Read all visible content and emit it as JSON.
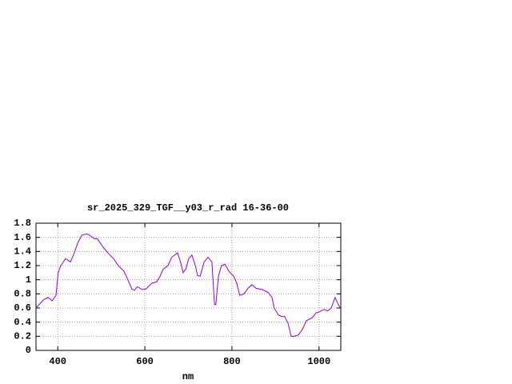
{
  "chart_data": {
    "type": "line",
    "title": "sr_2025_329_TGF__y03_r_rad 16-36-00",
    "x_label": "nm",
    "x": [
      350,
      368,
      378,
      387,
      396,
      401,
      407,
      418,
      429,
      436,
      446,
      455,
      466,
      473,
      484,
      491,
      502,
      515,
      528,
      539,
      552,
      561,
      570,
      576,
      583,
      594,
      603,
      616,
      627,
      635,
      642,
      653,
      662,
      675,
      682,
      688,
      694,
      701,
      708,
      716,
      721,
      727,
      736,
      745,
      754,
      760,
      763,
      769,
      776,
      784,
      793,
      804,
      811,
      818,
      828,
      837,
      846,
      855,
      870,
      883,
      892,
      897,
      907,
      914,
      921,
      929,
      936,
      943,
      953,
      962,
      971,
      984,
      993,
      1002,
      1011,
      1020,
      1028,
      1037,
      1042,
      1050
    ],
    "series": [
      {
        "name": "sr_2025_329_TGF__y03_r_rad",
        "color": "#9400d3",
        "values": [
          0.6,
          0.72,
          0.75,
          0.7,
          0.78,
          1.1,
          1.2,
          1.3,
          1.25,
          1.35,
          1.52,
          1.63,
          1.65,
          1.63,
          1.58,
          1.58,
          1.48,
          1.38,
          1.3,
          1.2,
          1.12,
          1.0,
          0.87,
          0.85,
          0.9,
          0.86,
          0.87,
          0.95,
          0.97,
          1.05,
          1.15,
          1.2,
          1.32,
          1.38,
          1.25,
          1.1,
          1.15,
          1.3,
          1.35,
          1.2,
          1.06,
          1.05,
          1.25,
          1.32,
          1.25,
          0.65,
          0.65,
          1.05,
          1.2,
          1.22,
          1.12,
          1.05,
          0.95,
          0.78,
          0.8,
          0.88,
          0.93,
          0.88,
          0.86,
          0.82,
          0.75,
          0.6,
          0.5,
          0.48,
          0.48,
          0.38,
          0.2,
          0.2,
          0.22,
          0.3,
          0.42,
          0.46,
          0.53,
          0.55,
          0.58,
          0.56,
          0.6,
          0.75,
          0.68,
          0.58
        ]
      }
    ],
    "xlim": [
      350,
      1050
    ],
    "xticks": [
      400,
      600,
      800,
      1000
    ],
    "ylim": [
      0,
      1.8
    ],
    "yticks": [
      0,
      0.2,
      0.4,
      0.6,
      0.8,
      1,
      1.2,
      1.4,
      1.6,
      1.8
    ],
    "grid": true
  }
}
